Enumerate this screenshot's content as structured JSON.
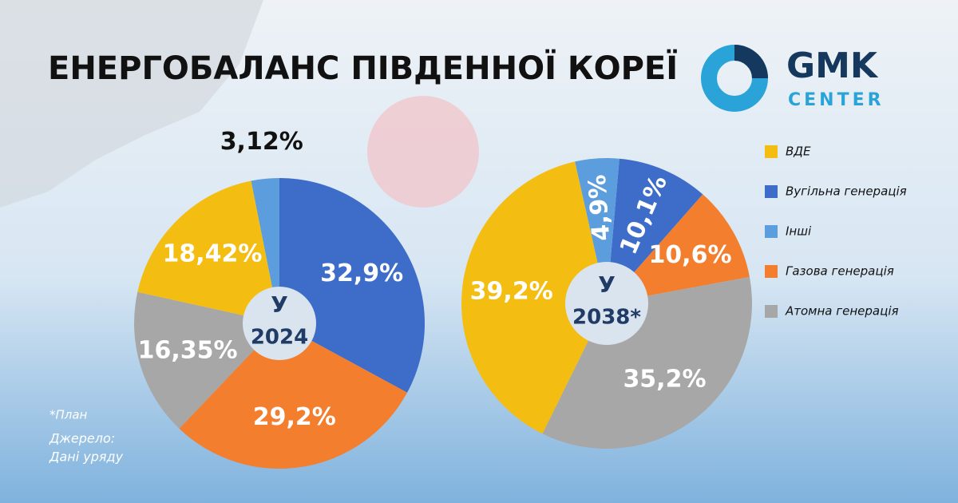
{
  "title": "ЕНЕРГОБАЛАНС ПІВДЕННОЇ КОРЕЇ",
  "logo": {
    "top": "GMK",
    "bottom": "CENTER"
  },
  "footnote": "*План",
  "source_label": "Джерело:",
  "source": "Дані уряду",
  "chart_data": [
    {
      "type": "pie",
      "center_prefix": "У",
      "center_label": "2024",
      "categories": [
        "Вугільна генерація",
        "Газова генерація",
        "Атомна генерація",
        "ВДЕ",
        "Інші"
      ],
      "values": [
        32.9,
        29.2,
        16.35,
        18.42,
        3.12
      ],
      "value_labels": [
        "32,9%",
        "29,2%",
        "16,35%",
        "18,42%",
        "3,12%"
      ],
      "colors": [
        "#3d6cc9",
        "#f27e2e",
        "#a7a7a7",
        "#f4bd12",
        "#5b9ddd"
      ]
    },
    {
      "type": "pie",
      "center_prefix": "У",
      "center_label": "2038*",
      "categories": [
        "Вугільна генерація",
        "Газова генерація",
        "Атомна генерація",
        "ВДЕ",
        "Інші"
      ],
      "values": [
        10.1,
        10.6,
        35.2,
        39.2,
        4.9
      ],
      "value_labels": [
        "10,1%",
        "10,6%",
        "35,2%",
        "39,2%",
        "4,9%"
      ],
      "colors": [
        "#3d6cc9",
        "#f27e2e",
        "#a7a7a7",
        "#f4bd12",
        "#5b9ddd"
      ]
    }
  ]
}
